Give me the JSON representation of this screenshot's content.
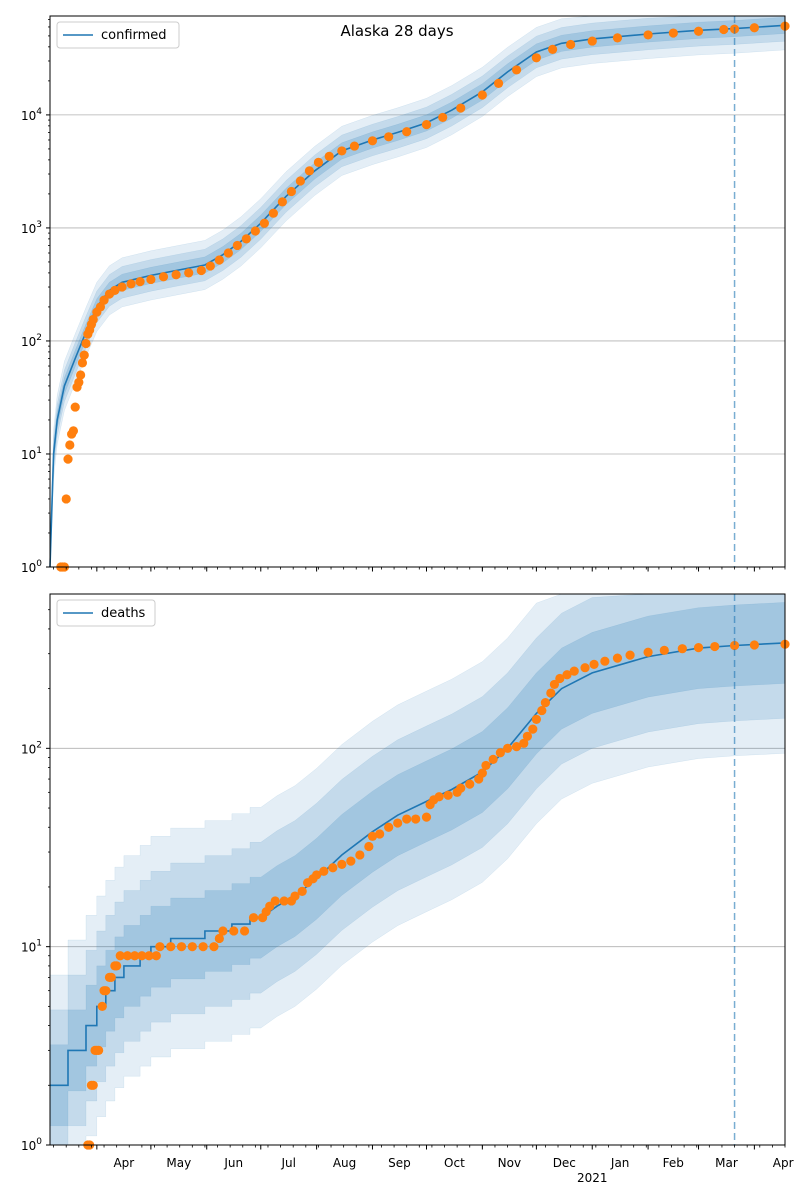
{
  "figure_title": "Alaska 28 days",
  "colors": {
    "model": "#1f77b4",
    "observed": "#ff7f0e",
    "grid": "#b0b0b0",
    "band": "#1f77b4"
  },
  "x_axis": {
    "months": [
      {
        "label": "Apr",
        "date": "2020-04-01"
      },
      {
        "label": "May",
        "date": "2020-05-01"
      },
      {
        "label": "Jun",
        "date": "2020-06-01"
      },
      {
        "label": "Jul",
        "date": "2020-07-01"
      },
      {
        "label": "Aug",
        "date": "2020-08-01"
      },
      {
        "label": "Sep",
        "date": "2020-09-01"
      },
      {
        "label": "Oct",
        "date": "2020-10-01"
      },
      {
        "label": "Nov",
        "date": "2020-11-01"
      },
      {
        "label": "Dec",
        "date": "2020-12-01"
      },
      {
        "label": "Jan",
        "date": "2021-01-01"
      },
      {
        "label": "Feb",
        "date": "2021-02-01"
      },
      {
        "label": "Mar",
        "date": "2021-03-01"
      },
      {
        "label": "Apr",
        "date": "2021-04-01"
      }
    ],
    "year_label": "2021",
    "range": [
      "2020-03-06",
      "2021-04-18"
    ],
    "forecast_start": "2021-03-21"
  },
  "chart_data": [
    {
      "type": "line",
      "scale": "log",
      "ylim": [
        1,
        75000
      ],
      "yticks": [
        {
          "value": 1,
          "base": "10",
          "exp": "0"
        },
        {
          "value": 10,
          "base": "10",
          "exp": "1"
        },
        {
          "value": 100,
          "base": "10",
          "exp": "2"
        },
        {
          "value": 1000,
          "base": "10",
          "exp": "3"
        },
        {
          "value": 10000,
          "base": "10",
          "exp": "4"
        }
      ],
      "grid": "horizontal",
      "legend": {
        "label": "confirmed",
        "position": "top-left"
      },
      "model_series": [
        [
          "2020-03-06",
          1
        ],
        [
          "2020-03-08",
          10
        ],
        [
          "2020-03-10",
          20
        ],
        [
          "2020-03-14",
          40
        ],
        [
          "2020-03-20",
          70
        ],
        [
          "2020-03-26",
          120
        ],
        [
          "2020-04-01",
          200
        ],
        [
          "2020-04-08",
          280
        ],
        [
          "2020-04-15",
          330
        ],
        [
          "2020-05-01",
          380
        ],
        [
          "2020-05-15",
          420
        ],
        [
          "2020-05-31",
          470
        ],
        [
          "2020-06-10",
          580
        ],
        [
          "2020-06-20",
          760
        ],
        [
          "2020-07-01",
          1100
        ],
        [
          "2020-07-15",
          1900
        ],
        [
          "2020-07-31",
          3200
        ],
        [
          "2020-08-15",
          4800
        ],
        [
          "2020-09-01",
          6000
        ],
        [
          "2020-09-15",
          7000
        ],
        [
          "2020-10-01",
          8500
        ],
        [
          "2020-10-15",
          11000
        ],
        [
          "2020-11-01",
          16000
        ],
        [
          "2020-11-15",
          24000
        ],
        [
          "2020-12-01",
          36000
        ],
        [
          "2020-12-15",
          43000
        ],
        [
          "2021-01-01",
          47000
        ],
        [
          "2021-02-01",
          52000
        ],
        [
          "2021-03-01",
          56000
        ],
        [
          "2021-03-21",
          58000
        ],
        [
          "2021-04-18",
          62000
        ]
      ],
      "observed_series": [
        [
          "2020-03-12",
          1
        ],
        [
          "2020-03-13",
          1
        ],
        [
          "2020-03-14",
          1
        ],
        [
          "2020-03-15",
          4
        ],
        [
          "2020-03-16",
          9
        ],
        [
          "2020-03-17",
          12
        ],
        [
          "2020-03-18",
          15
        ],
        [
          "2020-03-19",
          16
        ],
        [
          "2020-03-20",
          26
        ],
        [
          "2020-03-21",
          39
        ],
        [
          "2020-03-22",
          43
        ],
        [
          "2020-03-23",
          50
        ],
        [
          "2020-03-24",
          64
        ],
        [
          "2020-03-25",
          75
        ],
        [
          "2020-03-26",
          95
        ],
        [
          "2020-03-27",
          115
        ],
        [
          "2020-03-28",
          125
        ],
        [
          "2020-03-29",
          140
        ],
        [
          "2020-03-30",
          155
        ],
        [
          "2020-04-01",
          180
        ],
        [
          "2020-04-03",
          200
        ],
        [
          "2020-04-05",
          230
        ],
        [
          "2020-04-08",
          260
        ],
        [
          "2020-04-11",
          280
        ],
        [
          "2020-04-15",
          300
        ],
        [
          "2020-04-20",
          320
        ],
        [
          "2020-04-25",
          335
        ],
        [
          "2020-05-01",
          350
        ],
        [
          "2020-05-08",
          370
        ],
        [
          "2020-05-15",
          385
        ],
        [
          "2020-05-22",
          400
        ],
        [
          "2020-05-29",
          420
        ],
        [
          "2020-06-03",
          460
        ],
        [
          "2020-06-08",
          520
        ],
        [
          "2020-06-13",
          600
        ],
        [
          "2020-06-18",
          700
        ],
        [
          "2020-06-23",
          800
        ],
        [
          "2020-06-28",
          940
        ],
        [
          "2020-07-03",
          1100
        ],
        [
          "2020-07-08",
          1350
        ],
        [
          "2020-07-13",
          1700
        ],
        [
          "2020-07-18",
          2100
        ],
        [
          "2020-07-23",
          2600
        ],
        [
          "2020-07-28",
          3200
        ],
        [
          "2020-08-02",
          3800
        ],
        [
          "2020-08-08",
          4300
        ],
        [
          "2020-08-15",
          4800
        ],
        [
          "2020-08-22",
          5300
        ],
        [
          "2020-09-01",
          5900
        ],
        [
          "2020-09-10",
          6400
        ],
        [
          "2020-09-20",
          7100
        ],
        [
          "2020-10-01",
          8200
        ],
        [
          "2020-10-10",
          9500
        ],
        [
          "2020-10-20",
          11500
        ],
        [
          "2020-11-01",
          15000
        ],
        [
          "2020-11-10",
          19000
        ],
        [
          "2020-11-20",
          25000
        ],
        [
          "2020-12-01",
          32000
        ],
        [
          "2020-12-10",
          38000
        ],
        [
          "2020-12-20",
          42000
        ],
        [
          "2021-01-01",
          45000
        ],
        [
          "2021-01-15",
          48000
        ],
        [
          "2021-02-01",
          51000
        ],
        [
          "2021-02-15",
          53000
        ],
        [
          "2021-03-01",
          55000
        ],
        [
          "2021-03-15",
          57000
        ],
        [
          "2021-03-21",
          57500
        ],
        [
          "2021-04-01",
          59000
        ],
        [
          "2021-04-18",
          61000
        ]
      ]
    },
    {
      "type": "line",
      "scale": "log",
      "ylim": [
        1,
        600
      ],
      "yticks": [
        {
          "value": 1,
          "base": "10",
          "exp": "0"
        },
        {
          "value": 10,
          "base": "10",
          "exp": "1"
        },
        {
          "value": 100,
          "base": "10",
          "exp": "2"
        }
      ],
      "grid": "horizontal",
      "legend": {
        "label": "deaths",
        "position": "top-left"
      },
      "model_series": [
        [
          "2020-03-06",
          2
        ],
        [
          "2020-03-16",
          2
        ],
        [
          "2020-03-16",
          3
        ],
        [
          "2020-03-26",
          3
        ],
        [
          "2020-03-26",
          4
        ],
        [
          "2020-04-01",
          4
        ],
        [
          "2020-04-01",
          5
        ],
        [
          "2020-04-06",
          5
        ],
        [
          "2020-04-06",
          6
        ],
        [
          "2020-04-11",
          6
        ],
        [
          "2020-04-11",
          7
        ],
        [
          "2020-04-16",
          7
        ],
        [
          "2020-04-16",
          8
        ],
        [
          "2020-04-25",
          8
        ],
        [
          "2020-04-25",
          9
        ],
        [
          "2020-05-01",
          9
        ],
        [
          "2020-05-01",
          10
        ],
        [
          "2020-05-12",
          10
        ],
        [
          "2020-05-12",
          11
        ],
        [
          "2020-05-31",
          11
        ],
        [
          "2020-05-31",
          12
        ],
        [
          "2020-06-15",
          12
        ],
        [
          "2020-06-15",
          13
        ],
        [
          "2020-06-25",
          13
        ],
        [
          "2020-06-25",
          14
        ],
        [
          "2020-07-01",
          14
        ],
        [
          "2020-07-10",
          16
        ],
        [
          "2020-07-20",
          18
        ],
        [
          "2020-08-01",
          22
        ],
        [
          "2020-08-15",
          29
        ],
        [
          "2020-09-01",
          38
        ],
        [
          "2020-09-15",
          46
        ],
        [
          "2020-10-01",
          54
        ],
        [
          "2020-10-15",
          62
        ],
        [
          "2020-11-01",
          76
        ],
        [
          "2020-11-15",
          100
        ],
        [
          "2020-12-01",
          150
        ],
        [
          "2020-12-15",
          200
        ],
        [
          "2021-01-01",
          240
        ],
        [
          "2021-02-01",
          290
        ],
        [
          "2021-03-01",
          320
        ],
        [
          "2021-03-21",
          330
        ],
        [
          "2021-04-18",
          340
        ]
      ],
      "observed_series": [
        [
          "2020-03-27",
          1
        ],
        [
          "2020-03-28",
          1
        ],
        [
          "2020-03-29",
          2
        ],
        [
          "2020-03-30",
          2
        ],
        [
          "2020-03-31",
          3
        ],
        [
          "2020-04-01",
          3
        ],
        [
          "2020-04-02",
          3
        ],
        [
          "2020-04-04",
          5
        ],
        [
          "2020-04-05",
          6
        ],
        [
          "2020-04-06",
          6
        ],
        [
          "2020-04-08",
          7
        ],
        [
          "2020-04-09",
          7
        ],
        [
          "2020-04-11",
          8
        ],
        [
          "2020-04-12",
          8
        ],
        [
          "2020-04-14",
          9
        ],
        [
          "2020-04-18",
          9
        ],
        [
          "2020-04-22",
          9
        ],
        [
          "2020-04-26",
          9
        ],
        [
          "2020-04-30",
          9
        ],
        [
          "2020-05-04",
          9
        ],
        [
          "2020-05-06",
          10
        ],
        [
          "2020-05-12",
          10
        ],
        [
          "2020-05-18",
          10
        ],
        [
          "2020-05-24",
          10
        ],
        [
          "2020-05-30",
          10
        ],
        [
          "2020-06-05",
          10
        ],
        [
          "2020-06-08",
          11
        ],
        [
          "2020-06-10",
          12
        ],
        [
          "2020-06-16",
          12
        ],
        [
          "2020-06-22",
          12
        ],
        [
          "2020-06-27",
          14
        ],
        [
          "2020-07-02",
          14
        ],
        [
          "2020-07-04",
          15
        ],
        [
          "2020-07-06",
          16
        ],
        [
          "2020-07-09",
          17
        ],
        [
          "2020-07-14",
          17
        ],
        [
          "2020-07-18",
          17
        ],
        [
          "2020-07-20",
          18
        ],
        [
          "2020-07-24",
          19
        ],
        [
          "2020-07-27",
          21
        ],
        [
          "2020-07-30",
          22
        ],
        [
          "2020-08-01",
          23
        ],
        [
          "2020-08-05",
          24
        ],
        [
          "2020-08-10",
          25
        ],
        [
          "2020-08-15",
          26
        ],
        [
          "2020-08-20",
          27
        ],
        [
          "2020-08-25",
          29
        ],
        [
          "2020-08-30",
          32
        ],
        [
          "2020-09-01",
          36
        ],
        [
          "2020-09-05",
          37
        ],
        [
          "2020-09-10",
          40
        ],
        [
          "2020-09-15",
          42
        ],
        [
          "2020-09-20",
          44
        ],
        [
          "2020-09-25",
          44
        ],
        [
          "2020-10-01",
          45
        ],
        [
          "2020-10-03",
          52
        ],
        [
          "2020-10-05",
          55
        ],
        [
          "2020-10-08",
          57
        ],
        [
          "2020-10-13",
          58
        ],
        [
          "2020-10-18",
          60
        ],
        [
          "2020-10-20",
          63
        ],
        [
          "2020-10-25",
          66
        ],
        [
          "2020-10-30",
          70
        ],
        [
          "2020-11-01",
          75
        ],
        [
          "2020-11-03",
          82
        ],
        [
          "2020-11-07",
          88
        ],
        [
          "2020-11-11",
          95
        ],
        [
          "2020-11-15",
          100
        ],
        [
          "2020-11-20",
          102
        ],
        [
          "2020-11-24",
          106
        ],
        [
          "2020-11-26",
          115
        ],
        [
          "2020-11-29",
          125
        ],
        [
          "2020-12-01",
          140
        ],
        [
          "2020-12-04",
          155
        ],
        [
          "2020-12-06",
          170
        ],
        [
          "2020-12-09",
          190
        ],
        [
          "2020-12-11",
          210
        ],
        [
          "2020-12-14",
          225
        ],
        [
          "2020-12-18",
          235
        ],
        [
          "2020-12-22",
          245
        ],
        [
          "2020-12-28",
          255
        ],
        [
          "2021-01-02",
          265
        ],
        [
          "2021-01-08",
          275
        ],
        [
          "2021-01-15",
          285
        ],
        [
          "2021-01-22",
          295
        ],
        [
          "2021-02-01",
          305
        ],
        [
          "2021-02-10",
          312
        ],
        [
          "2021-02-20",
          318
        ],
        [
          "2021-03-01",
          322
        ],
        [
          "2021-03-10",
          326
        ],
        [
          "2021-03-21",
          330
        ],
        [
          "2021-04-01",
          332
        ],
        [
          "2021-04-18",
          335
        ]
      ]
    }
  ]
}
